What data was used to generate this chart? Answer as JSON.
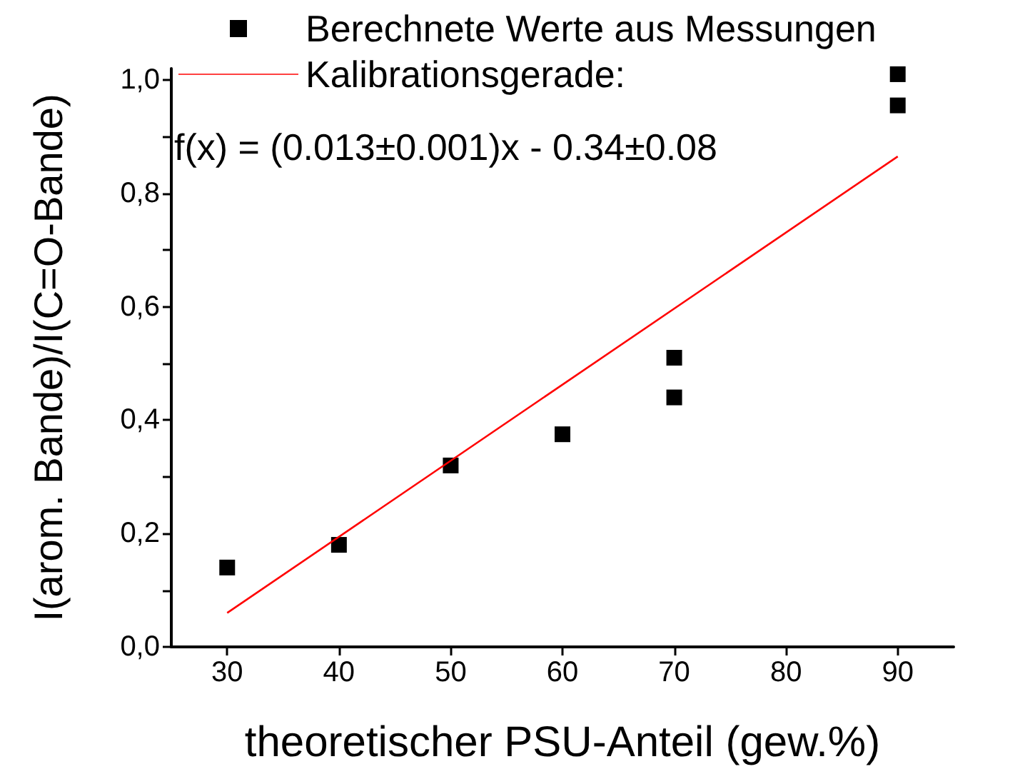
{
  "chart_data": {
    "type": "scatter",
    "xlabel": "theoretischer PSU-Anteil (gew.%)",
    "ylabel": "I(arom. Bande)/I(C=O-Bande)",
    "annotations": [
      "f(x) = (0.013±0.001)x - 0.34±0.08"
    ],
    "xlim": [
      25,
      95
    ],
    "xticks": [
      30,
      40,
      50,
      60,
      70,
      80,
      90
    ],
    "ylim": [
      0,
      1.02
    ],
    "yticks": [
      {
        "value": 0,
        "label": "0,0"
      },
      {
        "value": 0.1,
        "label": null
      },
      {
        "value": 0.2,
        "label": "0,2"
      },
      {
        "value": 0.3,
        "label": null
      },
      {
        "value": 0.4,
        "label": "0,4"
      },
      {
        "value": 0.5,
        "label": null
      },
      {
        "value": 0.6,
        "label": "0,6"
      },
      {
        "value": 0.7,
        "label": null
      },
      {
        "value": 0.8,
        "label": "0,8"
      },
      {
        "value": 0.9,
        "label": null
      },
      {
        "value": 1.0,
        "label": "1,0"
      }
    ],
    "grid": false,
    "legend": "top left",
    "marker": "square",
    "series": [
      {
        "name": "Berechnete Werte aus Messungen",
        "color": "#000000",
        "x": [
          30,
          40,
          50,
          60,
          70,
          70,
          90,
          90
        ],
        "values": [
          0.14,
          0.18,
          0.32,
          0.375,
          0.51,
          0.44,
          1.01,
          0.955
        ]
      },
      {
        "name": "Kalibrationsgerade:",
        "type": "line",
        "color": "#ff0000",
        "marker": "none",
        "line_style": "solid",
        "x": [
          30,
          90
        ],
        "values": [
          0.06,
          0.865
        ]
      }
    ]
  }
}
